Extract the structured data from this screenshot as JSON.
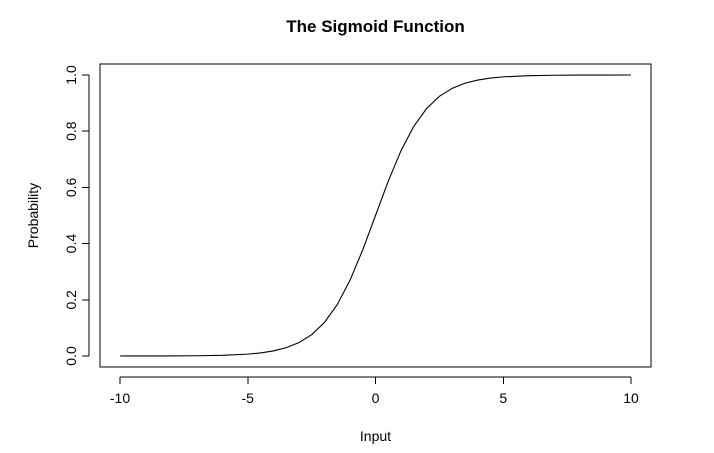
{
  "chart_data": {
    "type": "line",
    "title": "The Sigmoid Function",
    "xlabel": "Input",
    "ylabel": "Probability",
    "xlim": [
      -10,
      10
    ],
    "ylim": [
      0,
      1
    ],
    "x_ticks": [
      -10,
      -5,
      0,
      5,
      10
    ],
    "x_tick_labels": [
      "-10",
      "-5",
      "0",
      "5",
      "10"
    ],
    "y_ticks": [
      0,
      0.2,
      0.4,
      0.6,
      0.8,
      1
    ],
    "y_tick_labels": [
      "0.0",
      "0.2",
      "0.4",
      "0.6",
      "0.8",
      "1.0"
    ],
    "grid": false,
    "legend": "none",
    "series": [
      {
        "x": [
          -10,
          -9,
          -8,
          -7,
          -6,
          -5,
          -4.5,
          -4,
          -3.5,
          -3,
          -2.5,
          -2,
          -1.5,
          -1,
          -0.5,
          0,
          0.5,
          1,
          1.5,
          2,
          2.5,
          3,
          3.5,
          4,
          4.5,
          5,
          6,
          7,
          8,
          9,
          10
        ],
        "y": [
          4.54e-05,
          0.0001234,
          0.0003354,
          0.0009111,
          0.0024726,
          0.0066929,
          0.0109869,
          0.0179862,
          0.0293122,
          0.0474259,
          0.0758582,
          0.1192029,
          0.1824255,
          0.2689414,
          0.3775407,
          0.5,
          0.6224593,
          0.7310586,
          0.8175745,
          0.8807971,
          0.9241418,
          0.9525741,
          0.9706878,
          0.9820138,
          0.9890131,
          0.9933071,
          0.9975274,
          0.9990889,
          0.9996646,
          0.9998766,
          0.9999546
        ]
      }
    ],
    "colors": {
      "line": "#000000",
      "axes": "#000000",
      "background": "#ffffff"
    }
  }
}
